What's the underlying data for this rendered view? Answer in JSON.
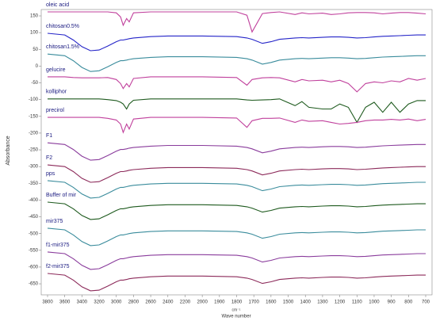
{
  "chart_data": {
    "type": "line",
    "y_label": "Absorbance",
    "x_label": "Wave number",
    "x_unit": "cm⁻¹",
    "xlim": [
      3800,
      700
    ],
    "xticks": [
      3800,
      3600,
      3400,
      3200,
      3000,
      2800,
      2600,
      2400,
      2200,
      2000,
      1900,
      1800,
      1700,
      1600,
      1500,
      1400,
      1300,
      1200,
      1100,
      1000,
      900,
      800,
      700
    ],
    "ylim": [
      -683,
      169
    ],
    "yticks": [
      150,
      100,
      50,
      0,
      -50,
      -100,
      -150,
      -200,
      -250,
      -300,
      -350,
      -400,
      -450,
      -500,
      -550,
      -600,
      -650
    ],
    "x": [
      3800,
      3600,
      3500,
      3400,
      3300,
      3200,
      3100,
      3000,
      2950,
      2920,
      2880,
      2850,
      2800,
      2600,
      2400,
      2200,
      2000,
      1800,
      1740,
      1710,
      1650,
      1600,
      1550,
      1460,
      1420,
      1380,
      1300,
      1250,
      1200,
      1150,
      1100,
      1050,
      1000,
      950,
      900,
      850,
      800,
      750,
      700
    ],
    "series": [
      {
        "name": "oleic acid",
        "color": "#c0409c",
        "values": [
          162,
          162,
          162,
          162,
          162,
          162,
          162,
          159,
          147,
          122,
          142,
          132,
          159,
          162,
          162,
          162,
          162,
          162,
          152,
          102,
          157,
          160,
          162,
          154,
          159,
          156,
          158,
          154,
          156,
          159,
          160,
          160,
          159,
          156,
          158,
          160,
          160,
          158,
          156
        ]
      },
      {
        "name": "chitosan0.5%",
        "color": "#2424c8",
        "values": [
          98,
          93,
          78,
          58,
          46,
          48,
          60,
          73,
          78,
          78,
          80,
          82,
          84,
          88,
          90,
          90,
          90,
          88,
          84,
          80,
          68,
          73,
          80,
          84,
          85,
          84,
          86,
          87,
          87,
          86,
          84,
          85,
          87,
          89,
          90,
          91,
          92,
          93,
          93
        ]
      },
      {
        "name": "chitosan1.5%",
        "color": "#3a8c9c",
        "values": [
          36,
          31,
          16,
          -4,
          -16,
          -14,
          -2,
          11,
          16,
          16,
          18,
          20,
          22,
          26,
          28,
          28,
          28,
          26,
          22,
          18,
          6,
          11,
          18,
          22,
          23,
          22,
          24,
          25,
          25,
          24,
          22,
          23,
          25,
          27,
          28,
          29,
          30,
          31,
          31
        ]
      },
      {
        "name": "gelucire",
        "color": "#c0409c",
        "values": [
          -32,
          -32,
          -34,
          -35,
          -35,
          -35,
          -34,
          -40,
          -52,
          -67,
          -52,
          -62,
          -37,
          -32,
          -32,
          -32,
          -32,
          -34,
          -57,
          -40,
          -35,
          -34,
          -35,
          -47,
          -40,
          -44,
          -42,
          -47,
          -42,
          -52,
          -77,
          -52,
          -47,
          -50,
          -44,
          -47,
          -37,
          -42,
          -37
        ]
      },
      {
        "name": "kolliphor",
        "color": "#1e5a1e",
        "values": [
          -98,
          -98,
          -98,
          -98,
          -98,
          -98,
          -100,
          -103,
          -108,
          -113,
          -128,
          -113,
          -102,
          -98,
          -98,
          -98,
          -98,
          -98,
          -101,
          -102,
          -101,
          -100,
          -98,
          -118,
          -106,
          -123,
          -128,
          -128,
          -113,
          -123,
          -168,
          -123,
          -108,
          -138,
          -108,
          -138,
          -113,
          -103,
          -103
        ]
      },
      {
        "name": "precirol",
        "color": "#c0409c",
        "values": [
          -153,
          -153,
          -153,
          -153,
          -153,
          -153,
          -156,
          -161,
          -173,
          -198,
          -173,
          -188,
          -158,
          -153,
          -153,
          -153,
          -153,
          -155,
          -183,
          -163,
          -156,
          -156,
          -155,
          -168,
          -161,
          -165,
          -163,
          -168,
          -173,
          -171,
          -168,
          -163,
          -161,
          -161,
          -159,
          -161,
          -158,
          -163,
          -159
        ]
      },
      {
        "name": "F1",
        "color": "#8a3c9c",
        "values": [
          -229,
          -234,
          -249,
          -269,
          -281,
          -279,
          -267,
          -254,
          -249,
          -249,
          -247,
          -245,
          -243,
          -239,
          -237,
          -237,
          -237,
          -239,
          -243,
          -247,
          -259,
          -254,
          -247,
          -243,
          -242,
          -243,
          -241,
          -240,
          -240,
          -241,
          -243,
          -242,
          -240,
          -238,
          -237,
          -236,
          -235,
          -234,
          -234
        ]
      },
      {
        "name": "F2",
        "color": "#8c2a5a",
        "values": [
          -295,
          -300,
          -315,
          -335,
          -347,
          -345,
          -333,
          -320,
          -315,
          -315,
          -313,
          -311,
          -309,
          -305,
          -303,
          -303,
          -303,
          -305,
          -309,
          -313,
          -325,
          -320,
          -313,
          -309,
          -308,
          -309,
          -307,
          -306,
          -306,
          -307,
          -309,
          -308,
          -306,
          -304,
          -303,
          -302,
          -301,
          -300,
          -300
        ]
      },
      {
        "name": "pps",
        "color": "#3a8c9c",
        "values": [
          -342,
          -347,
          -362,
          -382,
          -394,
          -392,
          -380,
          -367,
          -362,
          -362,
          -360,
          -358,
          -356,
          -352,
          -350,
          -350,
          -350,
          -352,
          -356,
          -360,
          -372,
          -367,
          -360,
          -356,
          -355,
          -356,
          -354,
          -353,
          -353,
          -354,
          -356,
          -355,
          -353,
          -351,
          -350,
          -349,
          -348,
          -347,
          -347
        ]
      },
      {
        "name": "Buffer of mir",
        "color": "#1e5a1e",
        "values": [
          -406,
          -411,
          -426,
          -446,
          -458,
          -456,
          -444,
          -431,
          -426,
          -426,
          -424,
          -422,
          -420,
          -416,
          -414,
          -414,
          -414,
          -416,
          -420,
          -424,
          -436,
          -431,
          -424,
          -420,
          -419,
          -420,
          -418,
          -417,
          -417,
          -418,
          -420,
          -419,
          -417,
          -415,
          -414,
          -413,
          -412,
          -411,
          -411
        ]
      },
      {
        "name": "mir375",
        "color": "#3a8c9c",
        "values": [
          -484,
          -489,
          -504,
          -524,
          -536,
          -534,
          -522,
          -509,
          -504,
          -504,
          -502,
          -500,
          -498,
          -494,
          -492,
          -492,
          -492,
          -494,
          -498,
          -502,
          -514,
          -509,
          -502,
          -498,
          -497,
          -498,
          -496,
          -495,
          -495,
          -496,
          -498,
          -497,
          -495,
          -493,
          -492,
          -491,
          -490,
          -489,
          -489
        ]
      },
      {
        "name": "f1-mir375",
        "color": "#8a3c9c",
        "values": [
          -555,
          -560,
          -575,
          -595,
          -607,
          -605,
          -593,
          -580,
          -575,
          -575,
          -573,
          -571,
          -569,
          -565,
          -563,
          -563,
          -563,
          -565,
          -569,
          -573,
          -585,
          -580,
          -573,
          -569,
          -568,
          -569,
          -567,
          -566,
          -566,
          -567,
          -569,
          -568,
          -566,
          -564,
          -563,
          -562,
          -561,
          -560,
          -560
        ]
      },
      {
        "name": "f2-mir375",
        "color": "#8c2a5a",
        "values": [
          -619,
          -624,
          -639,
          -659,
          -671,
          -669,
          -657,
          -644,
          -639,
          -639,
          -637,
          -635,
          -633,
          -629,
          -627,
          -627,
          -627,
          -629,
          -633,
          -637,
          -649,
          -644,
          -637,
          -633,
          -632,
          -633,
          -631,
          -630,
          -630,
          -631,
          -633,
          -632,
          -630,
          -628,
          -627,
          -626,
          -625,
          -624,
          -624
        ]
      }
    ]
  }
}
